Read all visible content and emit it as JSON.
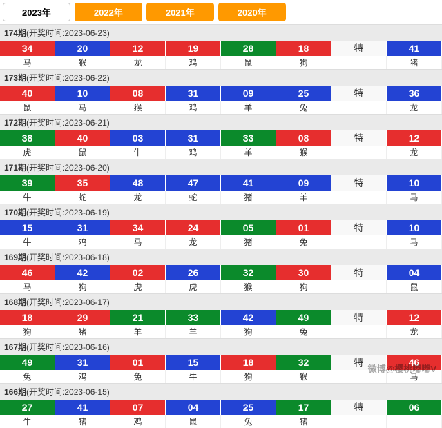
{
  "colors": {
    "R": "#e62e2e",
    "B": "#2343d3",
    "G": "#0b8a2b",
    "T": "#f8f8f8"
  },
  "years": [
    {
      "label": "2023年",
      "active": true
    },
    {
      "label": "2022年",
      "active": false
    },
    {
      "label": "2021年",
      "active": false
    },
    {
      "label": "2020年",
      "active": false
    }
  ],
  "special_label": "特",
  "periods": [
    {
      "issue": "174期",
      "date_label": "(开奖时间:2023-06-23)",
      "balls": [
        {
          "n": "34",
          "c": "R",
          "z": "马"
        },
        {
          "n": "20",
          "c": "B",
          "z": "猴"
        },
        {
          "n": "12",
          "c": "R",
          "z": "龙"
        },
        {
          "n": "19",
          "c": "R",
          "z": "鸡"
        },
        {
          "n": "28",
          "c": "G",
          "z": "鼠"
        },
        {
          "n": "18",
          "c": "R",
          "z": "狗"
        },
        {
          "n": "特",
          "c": "T",
          "z": ""
        },
        {
          "n": "41",
          "c": "B",
          "z": "猪"
        }
      ]
    },
    {
      "issue": "173期",
      "date_label": "(开奖时间:2023-06-22)",
      "balls": [
        {
          "n": "40",
          "c": "R",
          "z": "鼠"
        },
        {
          "n": "10",
          "c": "B",
          "z": "马"
        },
        {
          "n": "08",
          "c": "R",
          "z": "猴"
        },
        {
          "n": "31",
          "c": "B",
          "z": "鸡"
        },
        {
          "n": "09",
          "c": "B",
          "z": "羊"
        },
        {
          "n": "25",
          "c": "B",
          "z": "兔"
        },
        {
          "n": "特",
          "c": "T",
          "z": ""
        },
        {
          "n": "36",
          "c": "B",
          "z": "龙"
        }
      ]
    },
    {
      "issue": "172期",
      "date_label": "(开奖时间:2023-06-21)",
      "balls": [
        {
          "n": "38",
          "c": "G",
          "z": "虎"
        },
        {
          "n": "40",
          "c": "R",
          "z": "鼠"
        },
        {
          "n": "03",
          "c": "B",
          "z": "牛"
        },
        {
          "n": "31",
          "c": "B",
          "z": "鸡"
        },
        {
          "n": "33",
          "c": "G",
          "z": "羊"
        },
        {
          "n": "08",
          "c": "R",
          "z": "猴"
        },
        {
          "n": "特",
          "c": "T",
          "z": ""
        },
        {
          "n": "12",
          "c": "R",
          "z": "龙"
        }
      ]
    },
    {
      "issue": "171期",
      "date_label": "(开奖时间:2023-06-20)",
      "balls": [
        {
          "n": "39",
          "c": "G",
          "z": "牛"
        },
        {
          "n": "35",
          "c": "R",
          "z": "蛇"
        },
        {
          "n": "48",
          "c": "B",
          "z": "龙"
        },
        {
          "n": "47",
          "c": "B",
          "z": "蛇"
        },
        {
          "n": "41",
          "c": "B",
          "z": "猪"
        },
        {
          "n": "09",
          "c": "B",
          "z": "羊"
        },
        {
          "n": "特",
          "c": "T",
          "z": ""
        },
        {
          "n": "10",
          "c": "B",
          "z": "马"
        }
      ]
    },
    {
      "issue": "170期",
      "date_label": "(开奖时间:2023-06-19)",
      "balls": [
        {
          "n": "15",
          "c": "B",
          "z": "牛"
        },
        {
          "n": "31",
          "c": "B",
          "z": "鸡"
        },
        {
          "n": "34",
          "c": "R",
          "z": "马"
        },
        {
          "n": "24",
          "c": "R",
          "z": "龙"
        },
        {
          "n": "05",
          "c": "G",
          "z": "猪"
        },
        {
          "n": "01",
          "c": "R",
          "z": "兔"
        },
        {
          "n": "特",
          "c": "T",
          "z": ""
        },
        {
          "n": "10",
          "c": "B",
          "z": "马"
        }
      ]
    },
    {
      "issue": "169期",
      "date_label": "(开奖时间:2023-06-18)",
      "balls": [
        {
          "n": "46",
          "c": "R",
          "z": "马"
        },
        {
          "n": "42",
          "c": "B",
          "z": "狗"
        },
        {
          "n": "02",
          "c": "R",
          "z": "虎"
        },
        {
          "n": "26",
          "c": "B",
          "z": "虎"
        },
        {
          "n": "32",
          "c": "G",
          "z": "猴"
        },
        {
          "n": "30",
          "c": "R",
          "z": "狗"
        },
        {
          "n": "特",
          "c": "T",
          "z": ""
        },
        {
          "n": "04",
          "c": "B",
          "z": "鼠"
        }
      ]
    },
    {
      "issue": "168期",
      "date_label": "(开奖时间:2023-06-17)",
      "balls": [
        {
          "n": "18",
          "c": "R",
          "z": "狗"
        },
        {
          "n": "29",
          "c": "R",
          "z": "猪"
        },
        {
          "n": "21",
          "c": "G",
          "z": "羊"
        },
        {
          "n": "33",
          "c": "G",
          "z": "羊"
        },
        {
          "n": "42",
          "c": "B",
          "z": "狗"
        },
        {
          "n": "49",
          "c": "G",
          "z": "兔"
        },
        {
          "n": "特",
          "c": "T",
          "z": ""
        },
        {
          "n": "12",
          "c": "R",
          "z": "龙"
        }
      ]
    },
    {
      "issue": "167期",
      "date_label": "(开奖时间:2023-06-16)",
      "balls": [
        {
          "n": "49",
          "c": "G",
          "z": "兔"
        },
        {
          "n": "31",
          "c": "B",
          "z": "鸡"
        },
        {
          "n": "01",
          "c": "R",
          "z": "兔"
        },
        {
          "n": "15",
          "c": "B",
          "z": "牛"
        },
        {
          "n": "18",
          "c": "R",
          "z": "狗"
        },
        {
          "n": "32",
          "c": "G",
          "z": "猴"
        },
        {
          "n": "特",
          "c": "T",
          "z": ""
        },
        {
          "n": "46",
          "c": "R",
          "z": "马"
        }
      ]
    },
    {
      "issue": "166期",
      "date_label": "(开奖时间:2023-06-15)",
      "balls": [
        {
          "n": "27",
          "c": "G",
          "z": "牛"
        },
        {
          "n": "41",
          "c": "B",
          "z": "猪"
        },
        {
          "n": "07",
          "c": "R",
          "z": "鸡"
        },
        {
          "n": "04",
          "c": "B",
          "z": "鼠"
        },
        {
          "n": "25",
          "c": "B",
          "z": "兔"
        },
        {
          "n": "17",
          "c": "G",
          "z": "猪"
        },
        {
          "n": "特",
          "c": "T",
          "z": ""
        },
        {
          "n": "06",
          "c": "G",
          "z": ""
        }
      ]
    }
  ],
  "watermark": "微博@樱桃嘟嘟V"
}
